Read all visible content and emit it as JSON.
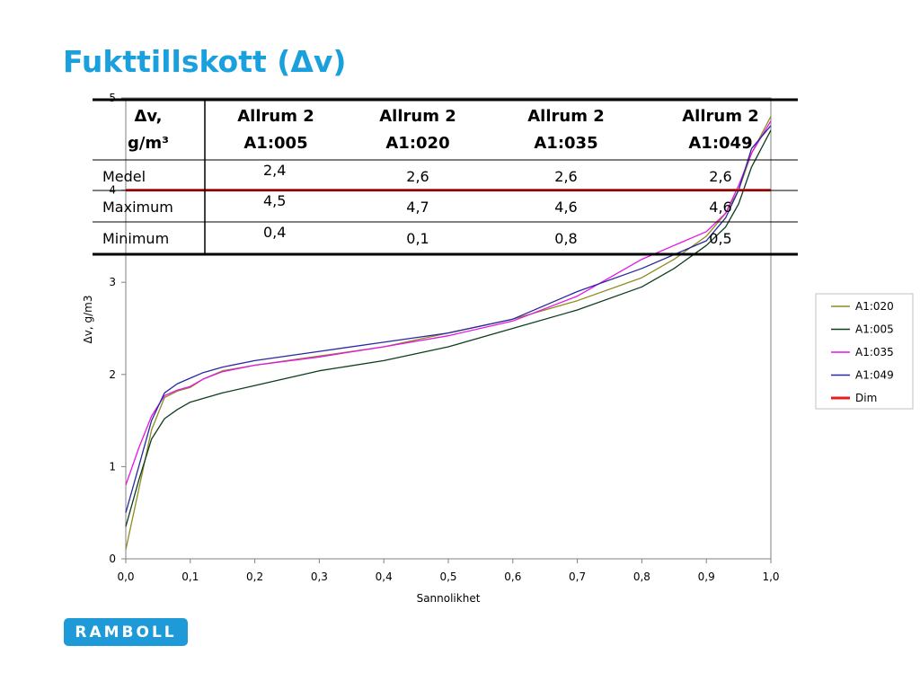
{
  "slide": {
    "title": "Fukttillskott (Δv)"
  },
  "logo": {
    "text": "RAMBOLL"
  },
  "chart_data": {
    "type": "line",
    "xlabel": "Sannolikhet",
    "ylabel": "Δv, g/m3",
    "xlim": [
      0,
      1
    ],
    "ylim": [
      0,
      5
    ],
    "xticks": [
      "0,0",
      "0,1",
      "0,2",
      "0,3",
      "0,4",
      "0,5",
      "0,6",
      "0,7",
      "0,8",
      "0,9",
      "1,0"
    ],
    "yticks": [
      "0",
      "1",
      "2",
      "3",
      "4",
      "5"
    ],
    "grid": false,
    "legend_position": "right",
    "series": [
      {
        "name": "A1:020",
        "color": "#8c8c1e",
        "points": [
          [
            0,
            0.1
          ],
          [
            0.02,
            0.75
          ],
          [
            0.04,
            1.4
          ],
          [
            0.06,
            1.75
          ],
          [
            0.08,
            1.82
          ],
          [
            0.1,
            1.86
          ],
          [
            0.12,
            1.95
          ],
          [
            0.15,
            2.04
          ],
          [
            0.2,
            2.1
          ],
          [
            0.3,
            2.2
          ],
          [
            0.4,
            2.3
          ],
          [
            0.5,
            2.45
          ],
          [
            0.6,
            2.6
          ],
          [
            0.7,
            2.8
          ],
          [
            0.8,
            3.05
          ],
          [
            0.85,
            3.25
          ],
          [
            0.9,
            3.5
          ],
          [
            0.93,
            3.75
          ],
          [
            0.95,
            4.0
          ],
          [
            0.97,
            4.4
          ],
          [
            1.0,
            4.8
          ]
        ]
      },
      {
        "name": "A1:005",
        "color": "#0f3d1e",
        "points": [
          [
            0,
            0.35
          ],
          [
            0.02,
            0.85
          ],
          [
            0.04,
            1.3
          ],
          [
            0.06,
            1.52
          ],
          [
            0.08,
            1.62
          ],
          [
            0.1,
            1.7
          ],
          [
            0.15,
            1.8
          ],
          [
            0.2,
            1.88
          ],
          [
            0.3,
            2.04
          ],
          [
            0.4,
            2.15
          ],
          [
            0.5,
            2.3
          ],
          [
            0.6,
            2.5
          ],
          [
            0.7,
            2.7
          ],
          [
            0.8,
            2.95
          ],
          [
            0.85,
            3.15
          ],
          [
            0.9,
            3.4
          ],
          [
            0.93,
            3.6
          ],
          [
            0.95,
            3.85
          ],
          [
            0.97,
            4.25
          ],
          [
            1.0,
            4.65
          ]
        ]
      },
      {
        "name": "A1:035",
        "color": "#e614e6",
        "points": [
          [
            0,
            0.8
          ],
          [
            0.02,
            1.2
          ],
          [
            0.04,
            1.55
          ],
          [
            0.06,
            1.77
          ],
          [
            0.08,
            1.83
          ],
          [
            0.1,
            1.87
          ],
          [
            0.12,
            1.95
          ],
          [
            0.15,
            2.03
          ],
          [
            0.2,
            2.1
          ],
          [
            0.3,
            2.19
          ],
          [
            0.4,
            2.3
          ],
          [
            0.5,
            2.42
          ],
          [
            0.6,
            2.58
          ],
          [
            0.7,
            2.85
          ],
          [
            0.8,
            3.25
          ],
          [
            0.85,
            3.4
          ],
          [
            0.9,
            3.55
          ],
          [
            0.93,
            3.75
          ],
          [
            0.95,
            4.05
          ],
          [
            0.97,
            4.4
          ],
          [
            1.0,
            4.75
          ]
        ]
      },
      {
        "name": "A1:049",
        "color": "#2828a0",
        "points": [
          [
            0,
            0.5
          ],
          [
            0.02,
            1.0
          ],
          [
            0.04,
            1.5
          ],
          [
            0.06,
            1.8
          ],
          [
            0.08,
            1.9
          ],
          [
            0.1,
            1.96
          ],
          [
            0.12,
            2.02
          ],
          [
            0.15,
            2.08
          ],
          [
            0.2,
            2.15
          ],
          [
            0.3,
            2.25
          ],
          [
            0.4,
            2.35
          ],
          [
            0.5,
            2.45
          ],
          [
            0.6,
            2.6
          ],
          [
            0.7,
            2.9
          ],
          [
            0.8,
            3.15
          ],
          [
            0.85,
            3.3
          ],
          [
            0.9,
            3.45
          ],
          [
            0.93,
            3.7
          ],
          [
            0.95,
            4.0
          ],
          [
            0.97,
            4.45
          ],
          [
            1.0,
            4.7
          ]
        ]
      },
      {
        "name": "Dim",
        "color": "#e61e1e",
        "points": [
          [
            0,
            4.0
          ],
          [
            1.0,
            4.0
          ]
        ]
      }
    ],
    "table": {
      "headers": [
        [
          "Δv,",
          "g/m³"
        ],
        [
          "Allrum 2",
          "A1:005"
        ],
        [
          "Allrum 2",
          "A1:020"
        ],
        [
          "Allrum 2",
          "A1:035"
        ],
        [
          "Allrum 2",
          "A1:049"
        ]
      ],
      "rows": [
        [
          "Medel",
          "2,4",
          "2,6",
          "2,6",
          "2,6"
        ],
        [
          "Maximum",
          "4,5",
          "4,7",
          "4,6",
          "4,6"
        ],
        [
          "Minimum",
          "0,4",
          "0,1",
          "0,8",
          "0,5"
        ]
      ]
    }
  }
}
